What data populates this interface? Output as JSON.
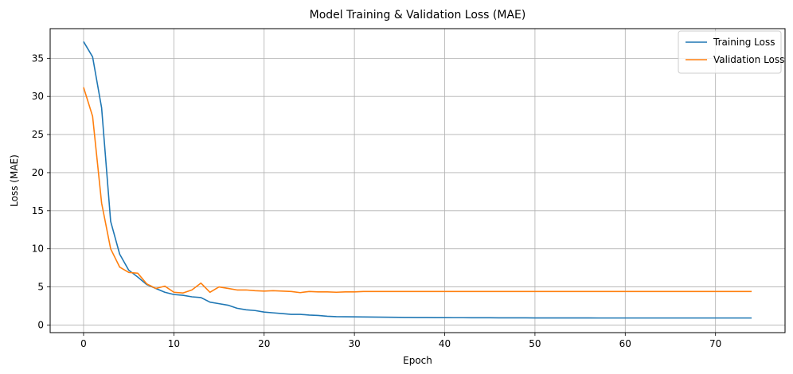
{
  "chart_data": {
    "type": "line",
    "title": "Model Training & Validation Loss (MAE)",
    "xlabel": "Epoch",
    "ylabel": "Loss (MAE)",
    "xlim": [
      -3.7,
      77.7
    ],
    "ylim": [
      -1.0,
      38.9
    ],
    "xticks": [
      0,
      10,
      20,
      30,
      40,
      50,
      60,
      70
    ],
    "yticks": [
      0,
      5,
      10,
      15,
      20,
      25,
      30,
      35
    ],
    "grid": true,
    "legend_position": "top-right",
    "series": [
      {
        "name": "Training Loss",
        "color": "#1f77b4",
        "x": [
          0,
          1,
          2,
          3,
          4,
          5,
          6,
          7,
          8,
          9,
          10,
          11,
          12,
          13,
          14,
          15,
          16,
          17,
          18,
          19,
          20,
          21,
          22,
          23,
          24,
          25,
          26,
          27,
          28,
          29,
          30,
          31,
          32,
          33,
          34,
          35,
          36,
          37,
          38,
          39,
          40,
          41,
          42,
          43,
          44,
          45,
          46,
          47,
          48,
          49,
          50,
          51,
          52,
          53,
          54,
          55,
          56,
          57,
          58,
          59,
          60,
          61,
          62,
          63,
          64,
          65,
          66,
          67,
          68,
          69,
          70,
          71,
          72,
          73,
          74
        ],
        "y": [
          37.2,
          35.2,
          28.5,
          13.6,
          9.3,
          7.2,
          6.3,
          5.3,
          4.8,
          4.3,
          4.0,
          3.9,
          3.7,
          3.6,
          3.0,
          2.8,
          2.6,
          2.2,
          2.0,
          1.9,
          1.7,
          1.6,
          1.5,
          1.4,
          1.4,
          1.3,
          1.25,
          1.15,
          1.1,
          1.08,
          1.07,
          1.06,
          1.04,
          1.03,
          1.02,
          1.0,
          0.99,
          0.98,
          0.98,
          0.97,
          0.97,
          0.96,
          0.96,
          0.95,
          0.95,
          0.95,
          0.94,
          0.94,
          0.94,
          0.94,
          0.93,
          0.93,
          0.93,
          0.93,
          0.93,
          0.93,
          0.93,
          0.92,
          0.92,
          0.92,
          0.92,
          0.92,
          0.92,
          0.92,
          0.92,
          0.92,
          0.92,
          0.92,
          0.92,
          0.92,
          0.92,
          0.92,
          0.92,
          0.92,
          0.92
        ]
      },
      {
        "name": "Validation Loss",
        "color": "#ff7f0e",
        "x": [
          0,
          1,
          2,
          3,
          4,
          5,
          6,
          7,
          8,
          9,
          10,
          11,
          12,
          13,
          14,
          15,
          16,
          17,
          18,
          19,
          20,
          21,
          22,
          23,
          24,
          25,
          26,
          27,
          28,
          29,
          30,
          31,
          32,
          33,
          34,
          35,
          36,
          37,
          38,
          39,
          40,
          41,
          42,
          43,
          44,
          45,
          46,
          47,
          48,
          49,
          50,
          51,
          52,
          53,
          54,
          55,
          56,
          57,
          58,
          59,
          60,
          61,
          62,
          63,
          64,
          65,
          66,
          67,
          68,
          69,
          70,
          71,
          72,
          73,
          74
        ],
        "y": [
          31.2,
          27.4,
          16.0,
          10.0,
          7.6,
          6.9,
          6.8,
          5.4,
          4.8,
          5.1,
          4.3,
          4.2,
          4.6,
          5.5,
          4.3,
          5.0,
          4.8,
          4.6,
          4.6,
          4.5,
          4.45,
          4.5,
          4.45,
          4.4,
          4.25,
          4.4,
          4.35,
          4.35,
          4.3,
          4.35,
          4.35,
          4.4,
          4.4,
          4.4,
          4.4,
          4.4,
          4.4,
          4.4,
          4.4,
          4.4,
          4.4,
          4.4,
          4.4,
          4.4,
          4.4,
          4.4,
          4.4,
          4.4,
          4.4,
          4.4,
          4.4,
          4.4,
          4.4,
          4.4,
          4.4,
          4.4,
          4.4,
          4.4,
          4.4,
          4.4,
          4.4,
          4.4,
          4.4,
          4.4,
          4.4,
          4.4,
          4.4,
          4.4,
          4.4,
          4.4,
          4.4,
          4.4,
          4.4,
          4.4,
          4.4
        ]
      }
    ]
  }
}
